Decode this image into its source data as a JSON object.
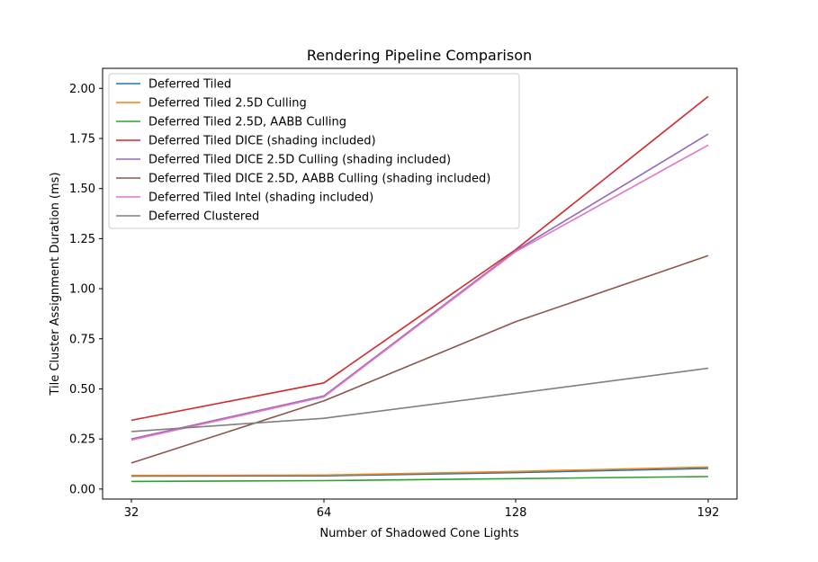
{
  "chart_data": {
    "type": "line",
    "title": "Rendering Pipeline Comparison",
    "xlabel": "Number of Shadowed Cone Lights",
    "ylabel": "Tile Cluster Assignment Duration (ms)",
    "categories": [
      "32",
      "64",
      "128",
      "192"
    ],
    "ylim": [
      -0.05,
      2.1
    ],
    "yticks": [
      "0.00",
      "0.25",
      "0.50",
      "0.75",
      "1.00",
      "1.25",
      "1.50",
      "1.75",
      "2.00"
    ],
    "grid": false,
    "legend_position": "top-left",
    "series": [
      {
        "name": "Deferred Tiled",
        "color": "#1f77b4",
        "values": [
          0.065,
          0.066,
          0.082,
          0.103
        ]
      },
      {
        "name": "Deferred Tiled 2.5D Culling",
        "color": "#ff7f0e",
        "values": [
          0.068,
          0.07,
          0.088,
          0.11
        ]
      },
      {
        "name": "Deferred Tiled 2.5D, AABB Culling",
        "color": "#2ca02c",
        "values": [
          0.038,
          0.042,
          0.052,
          0.062
        ]
      },
      {
        "name": "Deferred Tiled DICE (shading included)",
        "color": "#d62728",
        "values": [
          0.343,
          0.53,
          1.195,
          1.96
        ]
      },
      {
        "name": "Deferred Tiled DICE 2.5D Culling (shading included)",
        "color": "#9467bd",
        "values": [
          0.25,
          0.465,
          1.19,
          1.772
        ]
      },
      {
        "name": "Deferred Tiled DICE 2.5D, AABB Culling (shading included)",
        "color": "#8c564b",
        "values": [
          0.13,
          0.44,
          0.835,
          1.165
        ]
      },
      {
        "name": "Deferred Tiled Intel (shading included)",
        "color": "#e377c2",
        "values": [
          0.245,
          0.46,
          1.185,
          1.717
        ]
      },
      {
        "name": "Deferred Clustered",
        "color": "#7f7f7f",
        "values": [
          0.287,
          0.353,
          0.477,
          0.603
        ]
      }
    ]
  }
}
